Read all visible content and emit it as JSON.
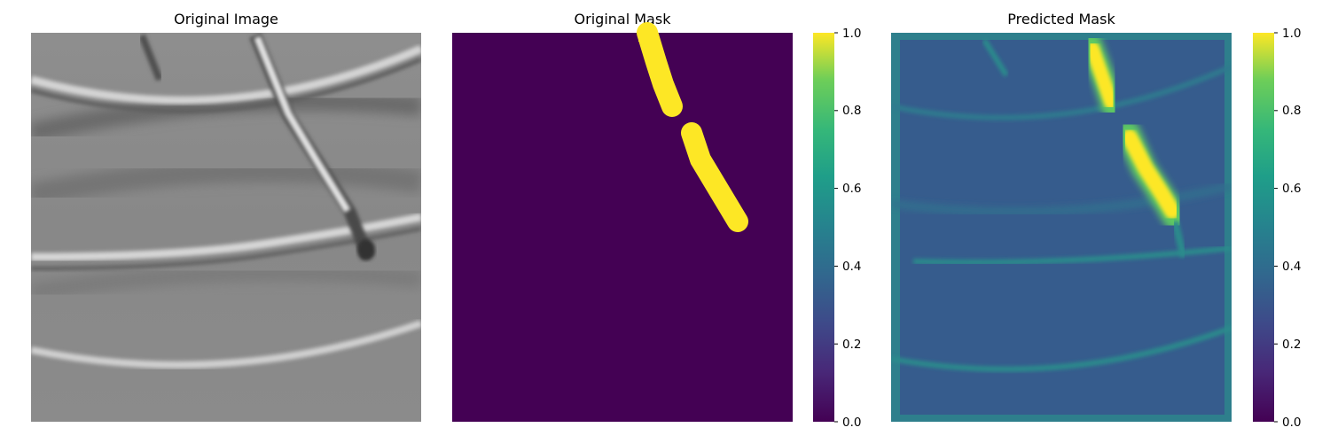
{
  "panels": [
    {
      "title": "Original Image"
    },
    {
      "title": "Original Mask"
    },
    {
      "title": "Predicted Mask"
    }
  ],
  "colorbar": {
    "colormap": "viridis",
    "ticks": [
      "0.0",
      "0.2",
      "0.4",
      "0.6",
      "0.8",
      "1.0"
    ]
  },
  "colors": {
    "viridis_low": "#440154",
    "viridis_mid_low": "#31688e",
    "viridis_mid": "#21918c",
    "viridis_high": "#5ec962",
    "viridis_top": "#fde725"
  }
}
